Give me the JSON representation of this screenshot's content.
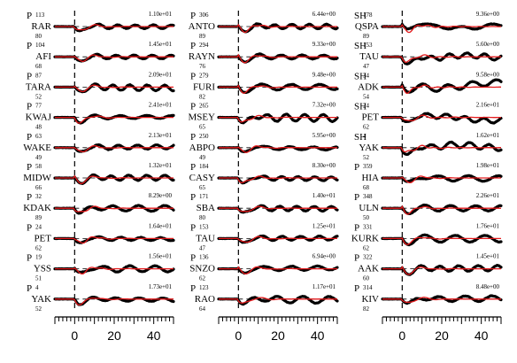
{
  "colors": {
    "observed": "#000000",
    "synthetic": "#e41a1c",
    "zero_line": "#000000"
  },
  "chart_data": {
    "type": "line",
    "x_axis": {
      "ticks": [
        0,
        20,
        40
      ],
      "xlim": [
        -10,
        50
      ]
    },
    "columns": [
      [
        {
          "phase": "P",
          "station": "RAR",
          "az": "113",
          "dist": "80",
          "amp": "1.10e+01"
        },
        {
          "phase": "P",
          "station": "AFI",
          "az": "104",
          "dist": "68",
          "amp": "1.45e+01"
        },
        {
          "phase": "P",
          "station": "TARA",
          "az": "87",
          "dist": "52",
          "amp": "2.09e+01"
        },
        {
          "phase": "P",
          "station": "KWAJ",
          "az": "77",
          "dist": "48",
          "amp": "2.41e+01"
        },
        {
          "phase": "P",
          "station": "WAKE",
          "az": "63",
          "dist": "49",
          "amp": "2.13e+01"
        },
        {
          "phase": "P",
          "station": "MIDW",
          "az": "58",
          "dist": "66",
          "amp": "1.32e+01"
        },
        {
          "phase": "P",
          "station": "KDAK",
          "az": "32",
          "dist": "89",
          "amp": "8.29e+00"
        },
        {
          "phase": "P",
          "station": "PET",
          "az": "24",
          "dist": "62",
          "amp": "1.64e+01"
        },
        {
          "phase": "P",
          "station": "YSS",
          "az": "19",
          "dist": "51",
          "amp": "1.56e+01"
        },
        {
          "phase": "P",
          "station": "YAK",
          "az": "4",
          "dist": "52",
          "amp": "1.73e+01"
        }
      ],
      [
        {
          "phase": "P",
          "station": "ANTO",
          "az": "306",
          "dist": "89",
          "amp": "6.44e+00"
        },
        {
          "phase": "P",
          "station": "RAYN",
          "az": "294",
          "dist": "76",
          "amp": "9.33e+00"
        },
        {
          "phase": "P",
          "station": "FURI",
          "az": "279",
          "dist": "82",
          "amp": "9.48e+00"
        },
        {
          "phase": "P",
          "station": "MSEY",
          "az": "265",
          "dist": "65",
          "amp": "7.32e+00"
        },
        {
          "phase": "P",
          "station": "ABPO",
          "az": "250",
          "dist": "49",
          "amp": "5.95e+00"
        },
        {
          "phase": "P",
          "station": "CASY",
          "az": "184",
          "dist": "65",
          "amp": "8.30e+00"
        },
        {
          "phase": "P",
          "station": "SBA",
          "az": "171",
          "dist": "80",
          "amp": "1.40e+01"
        },
        {
          "phase": "P",
          "station": "TAU",
          "az": "153",
          "dist": "47",
          "amp": "1.25e+01"
        },
        {
          "phase": "P",
          "station": "SNZO",
          "az": "136",
          "dist": "62",
          "amp": "6.94e+00"
        },
        {
          "phase": "P",
          "station": "RAO",
          "az": "123",
          "dist": "64",
          "amp": "1.17e+01"
        }
      ],
      [
        {
          "phase": "SH",
          "station": "QSPA",
          "az": "178",
          "dist": "89",
          "amp": "9.36e+00"
        },
        {
          "phase": "SH",
          "station": "TAU",
          "az": "153",
          "dist": "47",
          "amp": "5.60e+00"
        },
        {
          "phase": "SH",
          "station": "ADK",
          "az": "34",
          "dist": "54",
          "amp": "9.58e+00"
        },
        {
          "phase": "SH",
          "station": "PET",
          "az": "24",
          "dist": "62",
          "amp": "2.16e+01"
        },
        {
          "phase": "SH",
          "station": "YAK",
          "az": "4",
          "dist": "52",
          "amp": "1.62e+01"
        },
        {
          "phase": "P",
          "station": "HIA",
          "az": "359",
          "dist": "68",
          "amp": "1.98e+01"
        },
        {
          "phase": "P",
          "station": "ULN",
          "az": "348",
          "dist": "50",
          "amp": "2.26e+01"
        },
        {
          "phase": "P",
          "station": "KURK",
          "az": "331",
          "dist": "62",
          "amp": "1.76e+01"
        },
        {
          "phase": "P",
          "station": "AAK",
          "az": "322",
          "dist": "60",
          "amp": "1.45e+01"
        },
        {
          "phase": "P",
          "station": "KIV",
          "az": "314",
          "dist": "82",
          "amp": "8.48e+00"
        }
      ]
    ]
  }
}
